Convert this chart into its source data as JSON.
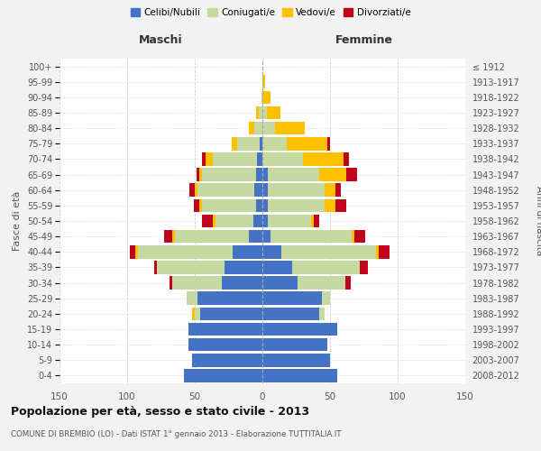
{
  "age_groups": [
    "0-4",
    "5-9",
    "10-14",
    "15-19",
    "20-24",
    "25-29",
    "30-34",
    "35-39",
    "40-44",
    "45-49",
    "50-54",
    "55-59",
    "60-64",
    "65-69",
    "70-74",
    "75-79",
    "80-84",
    "85-89",
    "90-94",
    "95-99",
    "100+"
  ],
  "birth_years": [
    "2008-2012",
    "2003-2007",
    "1998-2002",
    "1993-1997",
    "1988-1992",
    "1983-1987",
    "1978-1982",
    "1973-1977",
    "1968-1972",
    "1963-1967",
    "1958-1962",
    "1953-1957",
    "1948-1952",
    "1943-1947",
    "1938-1942",
    "1933-1937",
    "1928-1932",
    "1923-1927",
    "1918-1922",
    "1913-1917",
    "≤ 1912"
  ],
  "maschi": {
    "celibi": [
      58,
      52,
      55,
      55,
      46,
      48,
      30,
      28,
      22,
      10,
      7,
      5,
      6,
      5,
      4,
      2,
      0,
      0,
      0,
      0,
      0
    ],
    "coniugati": [
      0,
      0,
      0,
      0,
      4,
      8,
      37,
      50,
      70,
      55,
      28,
      40,
      42,
      40,
      33,
      17,
      6,
      3,
      1,
      0,
      0
    ],
    "vedovi": [
      0,
      0,
      0,
      0,
      2,
      0,
      0,
      0,
      2,
      2,
      2,
      2,
      2,
      2,
      5,
      4,
      4,
      2,
      0,
      0,
      0
    ],
    "divorziati": [
      0,
      0,
      0,
      0,
      0,
      0,
      2,
      2,
      4,
      6,
      8,
      4,
      4,
      2,
      3,
      0,
      0,
      0,
      0,
      0,
      0
    ]
  },
  "femmine": {
    "nubili": [
      55,
      50,
      48,
      55,
      42,
      44,
      26,
      22,
      14,
      6,
      4,
      4,
      4,
      4,
      0,
      0,
      0,
      0,
      0,
      0,
      0
    ],
    "coniugate": [
      0,
      0,
      0,
      0,
      4,
      6,
      35,
      50,
      70,
      60,
      32,
      42,
      42,
      38,
      30,
      18,
      9,
      3,
      0,
      0,
      0
    ],
    "vedove": [
      0,
      0,
      0,
      0,
      0,
      0,
      0,
      0,
      2,
      2,
      2,
      8,
      8,
      20,
      30,
      30,
      22,
      10,
      6,
      2,
      0
    ],
    "divorziate": [
      0,
      0,
      0,
      0,
      0,
      0,
      4,
      6,
      8,
      8,
      4,
      8,
      4,
      8,
      4,
      2,
      0,
      0,
      0,
      0,
      0
    ]
  },
  "colors": {
    "celibi": "#4472c4",
    "coniugati": "#c6d9a0",
    "vedovi": "#ffc000",
    "divorziati": "#c0041d"
  },
  "xlim": 150,
  "title": "Popolazione per età, sesso e stato civile - 2013",
  "subtitle": "COMUNE DI BREMBIO (LO) - Dati ISTAT 1° gennaio 2013 - Elaborazione TUTTITALIA.IT",
  "ylabel": "Fasce di età",
  "ylabel2": "Anni di nascita",
  "legend_labels": [
    "Celibi/Nubili",
    "Coniugati/e",
    "Vedovi/e",
    "Divorziati/e"
  ],
  "maschi_label": "Maschi",
  "femmine_label": "Femmine",
  "bg_color": "#f2f2f2",
  "plot_bg_color": "#ffffff",
  "grid_color": "#cccccc"
}
